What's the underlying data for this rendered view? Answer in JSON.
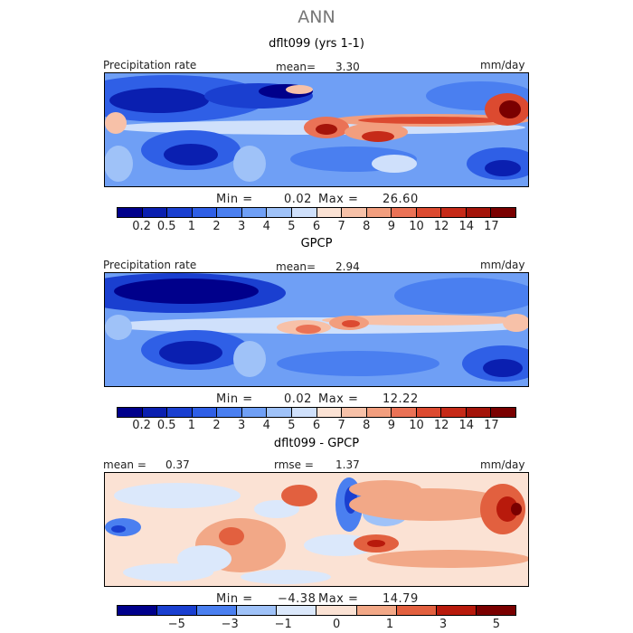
{
  "title": "ANN",
  "panels": [
    {
      "title": "dflt099 (yrs 1-1)",
      "left_label": "Precipitation rate",
      "center_label": "mean=",
      "center_value": "3.30",
      "right_label": "mm/day",
      "min_label": "Min =",
      "min_value": "0.02",
      "max_label": "Max =",
      "max_value": "26.60",
      "ticks": [
        "0.2",
        "0.5",
        "1",
        "2",
        "3",
        "4",
        "5",
        "6",
        "7",
        "8",
        "9",
        "10",
        "12",
        "14",
        "17"
      ]
    },
    {
      "title": "GPCP",
      "left_label": "Precipitation rate",
      "center_label": "mean=",
      "center_value": "2.94",
      "right_label": "mm/day",
      "min_label": "Min =",
      "min_value": "0.02",
      "max_label": "Max =",
      "max_value": "12.22",
      "ticks": [
        "0.2",
        "0.5",
        "1",
        "2",
        "3",
        "4",
        "5",
        "6",
        "7",
        "8",
        "9",
        "10",
        "12",
        "14",
        "17"
      ]
    },
    {
      "title": "dflt099 - GPCP",
      "left_label": "mean =",
      "left_value": "0.37",
      "center_label": "rmse =",
      "center_value": "1.37",
      "right_label": "mm/day",
      "min_label": "Min =",
      "min_value": "−4.38",
      "max_label": "Max =",
      "max_value": "14.79",
      "ticks": [
        "−5",
        "−3",
        "−1",
        "0",
        "1",
        "3",
        "5"
      ]
    }
  ],
  "chart_data": [
    {
      "type": "heatmap",
      "title": "dflt099 (yrs 1-1)",
      "variable": "Precipitation rate",
      "units": "mm/day",
      "mean": 3.3,
      "min": 0.02,
      "max": 26.6,
      "colorbar_levels": [
        0.2,
        0.5,
        1,
        2,
        3,
        4,
        5,
        6,
        7,
        8,
        9,
        10,
        12,
        14,
        17
      ]
    },
    {
      "type": "heatmap",
      "title": "GPCP",
      "variable": "Precipitation rate",
      "units": "mm/day",
      "mean": 2.94,
      "min": 0.02,
      "max": 12.22,
      "colorbar_levels": [
        0.2,
        0.5,
        1,
        2,
        3,
        4,
        5,
        6,
        7,
        8,
        9,
        10,
        12,
        14,
        17
      ]
    },
    {
      "type": "heatmap",
      "title": "dflt099 - GPCP",
      "units": "mm/day",
      "mean": 0.37,
      "rmse": 1.37,
      "min": -4.38,
      "max": 14.79,
      "colorbar_levels": [
        -5,
        -3,
        -1,
        0,
        1,
        3,
        5
      ]
    }
  ],
  "colors": {
    "seq": [
      "#00008b",
      "#0a1fb0",
      "#1a3fd0",
      "#2f5fe6",
      "#4a7ff0",
      "#6f9ff5",
      "#9fc2f8",
      "#cfe0fb",
      "#fbe2d4",
      "#f7c1a8",
      "#f29e7e",
      "#ea7256",
      "#dc4a30",
      "#c62a18",
      "#a4140a",
      "#7a0000"
    ],
    "diff": [
      "#00008b",
      "#1a3fd0",
      "#4a7ff0",
      "#9fc2f8",
      "#dbe8fb",
      "#fbe2d4",
      "#f2a887",
      "#e2603f",
      "#b81a0c",
      "#7a0000"
    ]
  }
}
